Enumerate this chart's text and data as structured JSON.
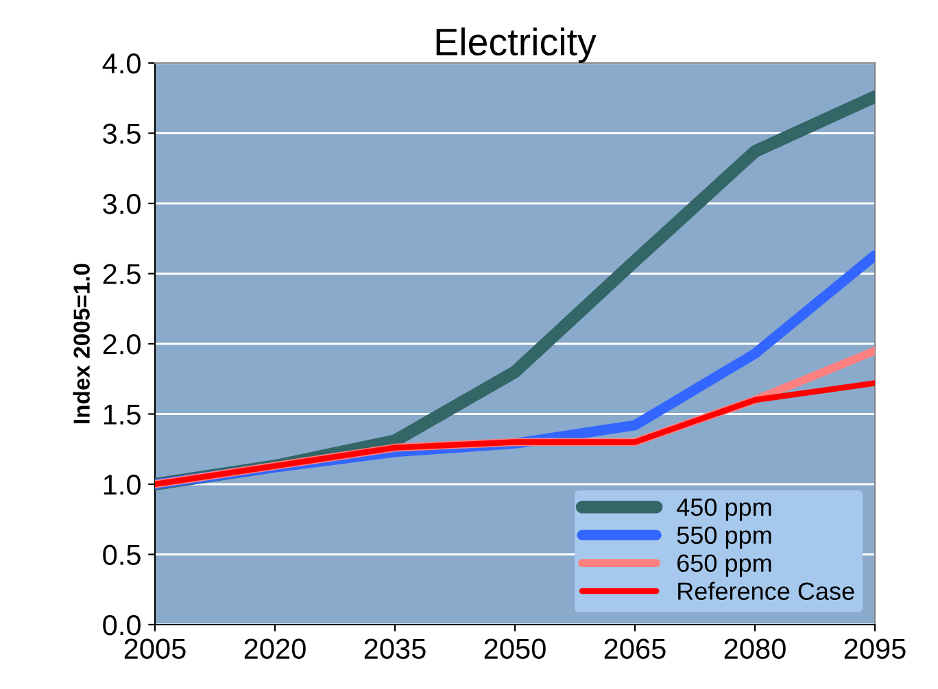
{
  "chart_data": {
    "type": "line",
    "title": "Electricity",
    "ylabel": "Index 2005=1.0",
    "x": [
      2005,
      2020,
      2035,
      2050,
      2065,
      2080,
      2095
    ],
    "series": [
      {
        "name": "450 ppm",
        "color": "#336666",
        "values": [
          1.0,
          1.13,
          1.31,
          1.8,
          2.59,
          3.37,
          3.76
        ]
      },
      {
        "name": "550 ppm",
        "color": "#3366ff",
        "values": [
          1.0,
          1.12,
          1.23,
          1.29,
          1.42,
          1.93,
          2.63
        ]
      },
      {
        "name": "650 ppm",
        "color": "#ff8080",
        "values": [
          1.0,
          1.13,
          1.26,
          1.3,
          1.3,
          1.6,
          1.95
        ]
      },
      {
        "name": "Reference Case",
        "color": "#ff0000",
        "values": [
          1.0,
          1.13,
          1.26,
          1.3,
          1.3,
          1.6,
          1.72
        ]
      }
    ],
    "xlim": [
      2005,
      2095
    ],
    "xticks": [
      2005,
      2020,
      2035,
      2050,
      2065,
      2080,
      2095
    ],
    "ylim": [
      0,
      4.0
    ],
    "yticks": [
      {
        "value": 0,
        "label": "0.0"
      },
      {
        "value": 0.5,
        "label": "0.5"
      },
      {
        "value": 1.0,
        "label": "1.0"
      },
      {
        "value": 1.5,
        "label": "1.5"
      },
      {
        "value": 2.0,
        "label": "2.0"
      },
      {
        "value": 2.5,
        "label": "2.5"
      },
      {
        "value": 3.0,
        "label": "3.0"
      },
      {
        "value": 3.5,
        "label": "3.5"
      },
      {
        "value": 4.0,
        "label": "4.0"
      }
    ],
    "grid": "y",
    "legend": "bottom right",
    "marker": "none",
    "line_style": "solid"
  }
}
